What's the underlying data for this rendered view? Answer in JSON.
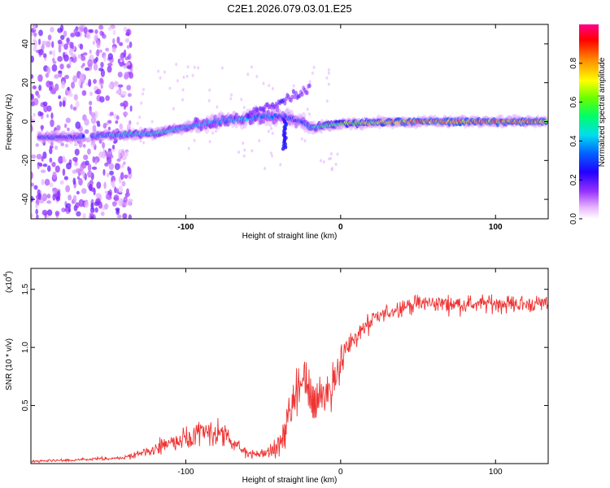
{
  "figure_title": "C2E1.2026.079.03.01.E25",
  "chart_data": [
    {
      "type": "heatmap",
      "title": "C2E1.2026.079.03.01.E25",
      "xlabel": "Height of straight line (km)",
      "ylabel": "Frequency (Hz)",
      "xlim": [
        -200,
        134
      ],
      "ylim": [
        -50,
        50
      ],
      "x_ticks": [
        -100,
        0,
        100
      ],
      "x_tick_labels": [
        "-100",
        "0",
        "100"
      ],
      "y_ticks": [
        -40,
        -20,
        0,
        20,
        40
      ],
      "y_tick_labels": [
        "-40",
        "-20",
        "0",
        "20",
        "40"
      ],
      "colorbar": {
        "label": "Normalized spectral amplitude",
        "range": [
          0,
          1
        ],
        "ticks": [
          0.0,
          0.2,
          0.4,
          0.6,
          0.8
        ],
        "tick_labels": [
          "0.0",
          "0.2",
          "0.4",
          "0.6",
          "0.8"
        ],
        "colors": [
          "#ffffff",
          "#cc66ff",
          "#6600ff",
          "#0000ff",
          "#00ccff",
          "#00ff66",
          "#66ff00",
          "#ffff00",
          "#ff8800",
          "#ff0000",
          "#ff0088"
        ]
      },
      "ridge": {
        "description_points_x": [
          -200,
          -170,
          -150,
          -120,
          -100,
          -80,
          -60,
          -40,
          -25,
          -20,
          0,
          50,
          100,
          134
        ],
        "frequency_y": [
          -8,
          -8,
          -7,
          -6,
          -3,
          0,
          2,
          3,
          0,
          -3,
          -1,
          0,
          0,
          0
        ],
        "amplitude": [
          0.35,
          0.3,
          0.45,
          0.5,
          0.45,
          0.4,
          0.45,
          0.35,
          0.3,
          0.5,
          0.7,
          0.9,
          0.9,
          0.85
        ]
      }
    },
    {
      "type": "line",
      "xlabel": "Height of straight line (km)",
      "ylabel": "SNR (10 * v/v)",
      "y_multiplier": "(x10⁴)",
      "y_multiplier_base": "(x10",
      "y_multiplier_exp": "4",
      "y_multiplier_close": ")",
      "xlim": [
        -200,
        134
      ],
      "ylim": [
        0,
        1.68
      ],
      "x_ticks": [
        -100,
        0,
        100
      ],
      "x_tick_labels": [
        "-100",
        "0",
        "100"
      ],
      "y_ticks": [
        0.5,
        1.0,
        1.5
      ],
      "y_tick_labels": [
        "0.5",
        "1.0",
        "1.5"
      ],
      "series": [
        {
          "name": "SNR",
          "color": "#ee3333",
          "x": [
            -200,
            -170,
            -140,
            -125,
            -110,
            -95,
            -85,
            -75,
            -65,
            -55,
            -45,
            -38,
            -32,
            -28,
            -25,
            -22,
            -18,
            -12,
            -8,
            -4,
            0,
            5,
            10,
            20,
            30,
            40,
            50,
            60,
            80,
            100,
            120,
            134
          ],
          "y": [
            0.02,
            0.03,
            0.05,
            0.1,
            0.18,
            0.22,
            0.28,
            0.24,
            0.12,
            0.08,
            0.1,
            0.2,
            0.45,
            0.62,
            0.7,
            0.65,
            0.55,
            0.6,
            0.62,
            0.75,
            0.9,
            1.0,
            1.1,
            1.22,
            1.3,
            1.35,
            1.38,
            1.38,
            1.37,
            1.38,
            1.37,
            1.38
          ],
          "noise": [
            0.01,
            0.015,
            0.02,
            0.05,
            0.08,
            0.1,
            0.14,
            0.12,
            0.06,
            0.04,
            0.06,
            0.12,
            0.25,
            0.3,
            0.35,
            0.35,
            0.28,
            0.25,
            0.25,
            0.22,
            0.18,
            0.15,
            0.12,
            0.1,
            0.08,
            0.08,
            0.08,
            0.08,
            0.08,
            0.08,
            0.08,
            0.08
          ]
        }
      ]
    }
  ]
}
